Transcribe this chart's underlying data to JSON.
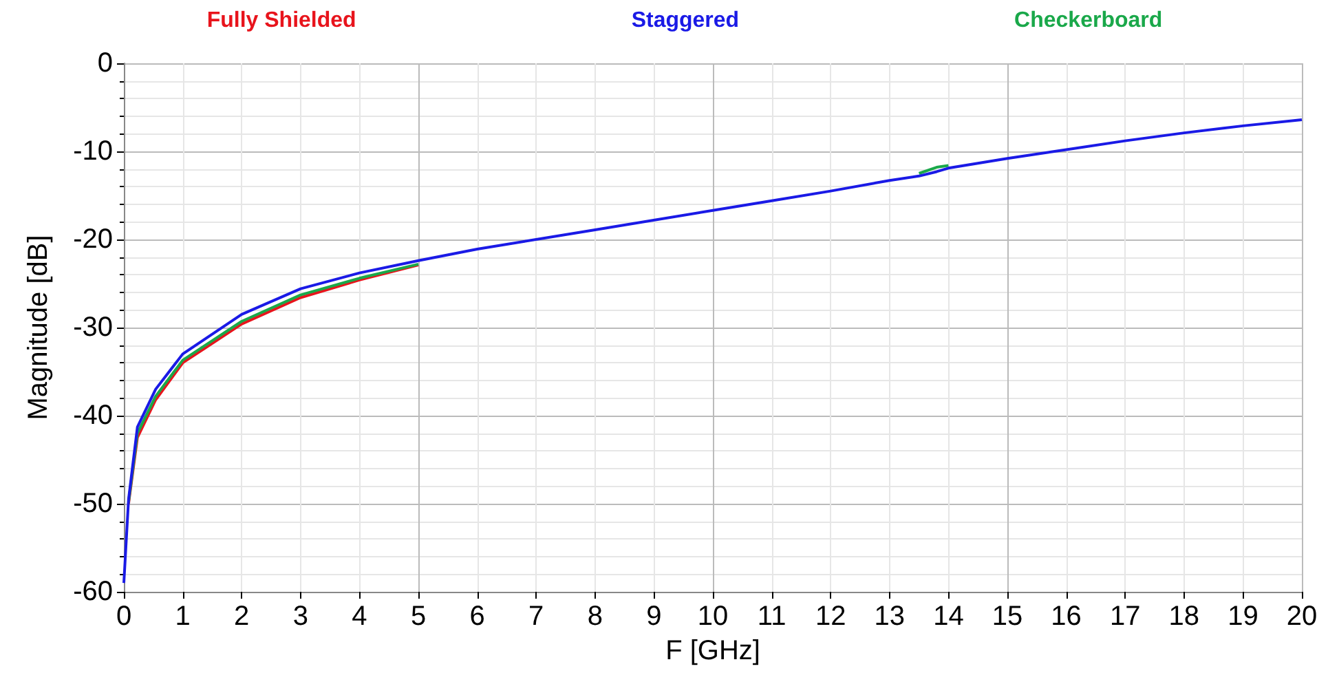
{
  "chart_data": {
    "type": "line",
    "xlabel": "F [GHz]",
    "ylabel": "Magnitude [dB]",
    "x": [
      0,
      0.08,
      0.23,
      0.54,
      1,
      2,
      3,
      4,
      5,
      6,
      8,
      10,
      11,
      12,
      13,
      13.5,
      13.8,
      14,
      15,
      16,
      17,
      18,
      19,
      20
    ],
    "series": [
      {
        "name": "Fully Shielded",
        "color": "#e8141c",
        "values": [
          null,
          -50,
          -42.5,
          -38.2,
          -34,
          -29.6,
          -26.6,
          -24.6,
          -22.9,
          null,
          null,
          null,
          null,
          null,
          null,
          null,
          null,
          null,
          null,
          null,
          null,
          null,
          null,
          null
        ]
      },
      {
        "name": "Staggered",
        "color": "#1a1ae6",
        "values": [
          -59,
          -49.5,
          -41.3,
          -37,
          -33,
          -28.5,
          -25.6,
          -23.8,
          -22.4,
          -21.1,
          -18.9,
          -16.7,
          -15.6,
          -14.5,
          -13.3,
          -12.8,
          -12.3,
          -11.9,
          -10.8,
          -9.8,
          -8.8,
          -7.9,
          -7.1,
          -6.4
        ]
      },
      {
        "name": "Checkerboard",
        "color": "#1aa84a",
        "values": [
          null,
          -49.8,
          -42,
          -37.8,
          -33.7,
          -29.3,
          -26.3,
          -24.4,
          -22.8,
          null,
          null,
          null,
          null,
          null,
          null,
          -12.5,
          -11.8,
          -11.6,
          null,
          null,
          null,
          null,
          null,
          null
        ]
      }
    ],
    "xlim": [
      0,
      20
    ],
    "xticks": [
      0,
      1,
      2,
      3,
      4,
      5,
      6,
      7,
      8,
      9,
      10,
      11,
      12,
      13,
      14,
      15,
      16,
      17,
      18,
      19,
      20
    ],
    "ylim": [
      -60,
      0
    ],
    "yticks": [
      -60,
      -50,
      -40,
      -30,
      -20,
      -10,
      0
    ],
    "grid": true,
    "legend": "top",
    "marker": "none",
    "line_style": "solid"
  }
}
